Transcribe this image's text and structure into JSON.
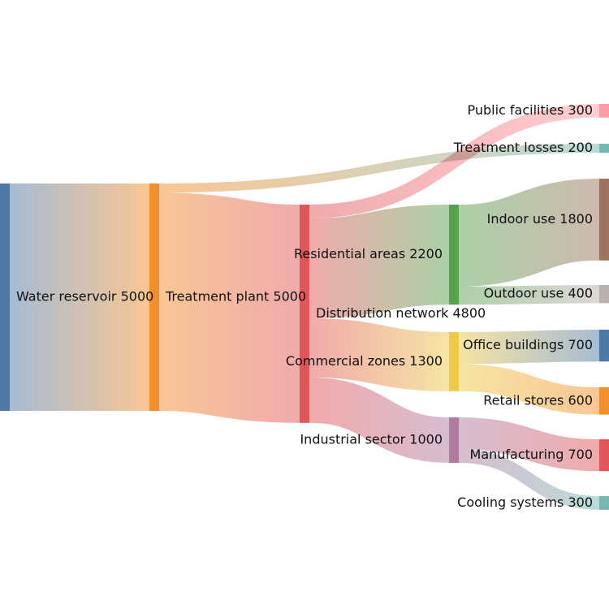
{
  "chart_data": {
    "type": "sankey",
    "title": "",
    "nodes": [
      {
        "id": "reservoir",
        "name": "Water reservoir",
        "value": 5000,
        "color": "#4e79a7",
        "label_side": "right"
      },
      {
        "id": "treatment",
        "name": "Treatment plant",
        "value": 5000,
        "color": "#f28e2b",
        "label_side": "right"
      },
      {
        "id": "losses",
        "name": "Treatment losses",
        "value": 200,
        "color": "#76b7b2",
        "label_side": "left"
      },
      {
        "id": "distribution",
        "name": "Distribution network",
        "value": 4800,
        "color": "#e15759",
        "label_side": "right"
      },
      {
        "id": "public",
        "name": "Public facilities",
        "value": 300,
        "color": "#ff9da7",
        "label_side": "left"
      },
      {
        "id": "residential",
        "name": "Residential areas",
        "value": 2200,
        "color": "#59a14f",
        "label_side": "left"
      },
      {
        "id": "commercial",
        "name": "Commercial zones",
        "value": 1300,
        "color": "#edc948",
        "label_side": "left"
      },
      {
        "id": "industrial",
        "name": "Industrial sector",
        "value": 1000,
        "color": "#b07aa1",
        "label_side": "left"
      },
      {
        "id": "indoor",
        "name": "Indoor use",
        "value": 1800,
        "color": "#9c755f",
        "label_side": "left"
      },
      {
        "id": "outdoor",
        "name": "Outdoor use",
        "value": 400,
        "color": "#bab0ac",
        "label_side": "left"
      },
      {
        "id": "office",
        "name": "Office buildings",
        "value": 700,
        "color": "#4e79a7",
        "label_side": "left"
      },
      {
        "id": "retail",
        "name": "Retail stores",
        "value": 600,
        "color": "#f28e2b",
        "label_side": "left"
      },
      {
        "id": "manufacturing",
        "name": "Manufacturing",
        "value": 700,
        "color": "#e15759",
        "label_side": "left"
      },
      {
        "id": "cooling",
        "name": "Cooling systems",
        "value": 300,
        "color": "#76b7b2",
        "label_side": "left"
      }
    ],
    "links": [
      {
        "source": "reservoir",
        "target": "treatment",
        "value": 5000
      },
      {
        "source": "treatment",
        "target": "losses",
        "value": 200
      },
      {
        "source": "treatment",
        "target": "distribution",
        "value": 4800
      },
      {
        "source": "distribution",
        "target": "public",
        "value": 300
      },
      {
        "source": "distribution",
        "target": "residential",
        "value": 2200
      },
      {
        "source": "distribution",
        "target": "commercial",
        "value": 1300
      },
      {
        "source": "distribution",
        "target": "industrial",
        "value": 1000
      },
      {
        "source": "residential",
        "target": "indoor",
        "value": 1800
      },
      {
        "source": "residential",
        "target": "outdoor",
        "value": 400
      },
      {
        "source": "commercial",
        "target": "office",
        "value": 700
      },
      {
        "source": "commercial",
        "target": "retail",
        "value": 600
      },
      {
        "source": "industrial",
        "target": "manufacturing",
        "value": 700
      },
      {
        "source": "industrial",
        "target": "cooling",
        "value": 300
      }
    ]
  }
}
